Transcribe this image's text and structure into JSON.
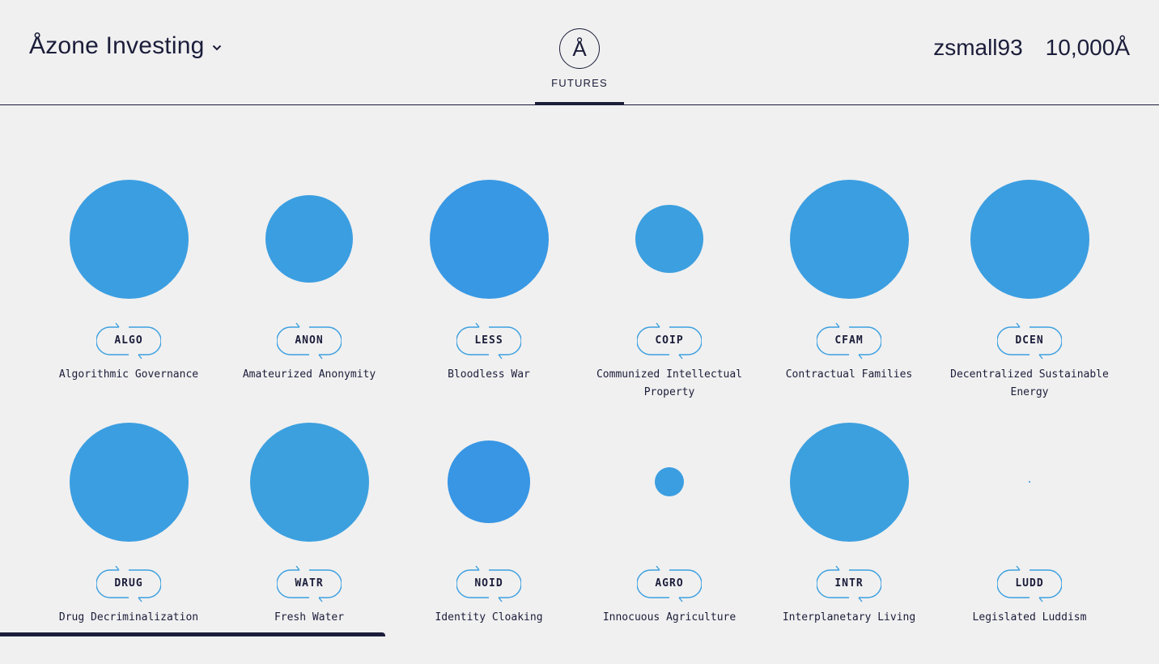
{
  "header": {
    "brand": "Åzone Investing",
    "brand_chevron_icon": "chevron-down-icon",
    "logo_glyph": "Å",
    "nav_label": "FUTURES",
    "username": "zsmall93",
    "balance": "10,000Å"
  },
  "colors": {
    "accent": "#3b9fe0",
    "text": "#1b1d3a",
    "background": "#f0f0f0"
  },
  "futures": [
    {
      "ticker": "ALGO",
      "name": "Algorithmic Governance",
      "size": 1.0,
      "color": "#3b9ee1"
    },
    {
      "ticker": "ANON",
      "name": "Amateurized Anonymity",
      "size": 0.74,
      "color": "#3b9ee1"
    },
    {
      "ticker": "LESS",
      "name": "Bloodless War",
      "size": 1.0,
      "color": "#3898e4"
    },
    {
      "ticker": "COIP",
      "name": "Communized Intellectual Property",
      "size": 0.57,
      "color": "#3c9fdf"
    },
    {
      "ticker": "CFAM",
      "name": "Contractual Families",
      "size": 1.0,
      "color": "#3b9ee1"
    },
    {
      "ticker": "DCEN",
      "name": "Decentralized Sustainable Energy",
      "size": 1.0,
      "color": "#3b9ee1"
    },
    {
      "ticker": "DRUG",
      "name": "Drug Decriminalization",
      "size": 1.0,
      "color": "#3b9ee1"
    },
    {
      "ticker": "WATR",
      "name": "Fresh Water",
      "size": 1.0,
      "color": "#3ca0df"
    },
    {
      "ticker": "NOID",
      "name": "Identity Cloaking",
      "size": 0.69,
      "color": "#3896e4"
    },
    {
      "ticker": "AGRO",
      "name": "Innocuous Agriculture",
      "size": 0.25,
      "color": "#3b9ee1"
    },
    {
      "ticker": "INTR",
      "name": "Interplanetary Living",
      "size": 1.0,
      "color": "#3ca0df"
    },
    {
      "ticker": "LUDD",
      "name": "Legislated Luddism",
      "size": 0.01,
      "color": "#3b9ee1"
    }
  ]
}
